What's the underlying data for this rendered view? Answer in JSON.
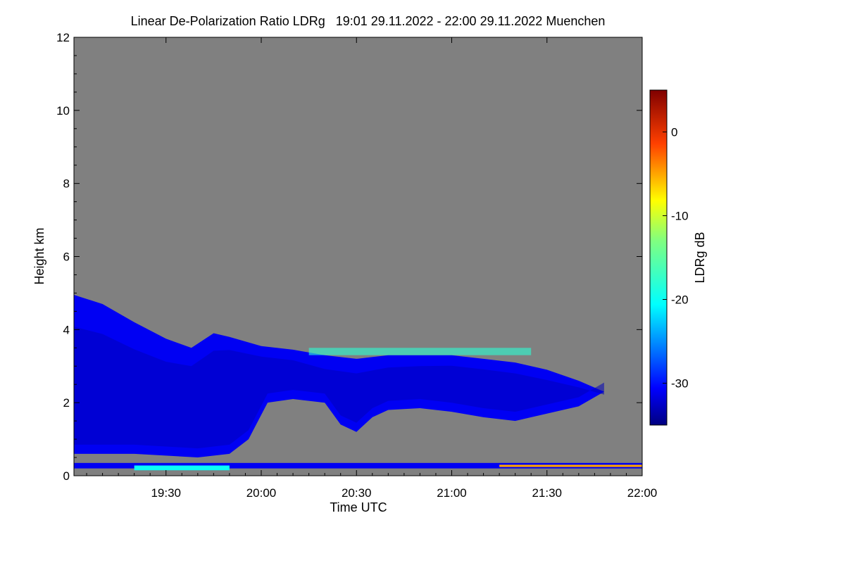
{
  "chart_data": {
    "type": "heatmap",
    "title": "Linear De-Polarization Ratio LDRg   19:01 29.11.2022 - 22:00 29.11.2022 Muenchen",
    "xlabel": "Time UTC",
    "ylabel": "Height km",
    "colorbar_label": "LDRg dB",
    "x_range_minutes_after_19": [
      1,
      180
    ],
    "x_ticks": [
      {
        "label": "19:30",
        "minute": 30
      },
      {
        "label": "20:00",
        "minute": 60
      },
      {
        "label": "20:30",
        "minute": 90
      },
      {
        "label": "21:00",
        "minute": 120
      },
      {
        "label": "21:30",
        "minute": 150
      },
      {
        "label": "22:00",
        "minute": 180
      }
    ],
    "ylim": [
      0,
      12
    ],
    "y_ticks": [
      0,
      2,
      4,
      6,
      8,
      10,
      12
    ],
    "colorbar_range": [
      -35,
      5
    ],
    "colorbar_ticks": [
      0,
      -10,
      -20,
      -30
    ],
    "no_data_color": "#808080",
    "cloud_top_km": [
      {
        "minute": 1,
        "top": 4.95
      },
      {
        "minute": 10,
        "top": 4.7
      },
      {
        "minute": 20,
        "top": 4.2
      },
      {
        "minute": 30,
        "top": 3.75
      },
      {
        "minute": 38,
        "top": 3.5
      },
      {
        "minute": 45,
        "top": 3.9
      },
      {
        "minute": 50,
        "top": 3.8
      },
      {
        "minute": 60,
        "top": 3.55
      },
      {
        "minute": 70,
        "top": 3.45
      },
      {
        "minute": 80,
        "top": 3.3
      },
      {
        "minute": 90,
        "top": 3.2
      },
      {
        "minute": 100,
        "top": 3.3
      },
      {
        "minute": 110,
        "top": 3.3
      },
      {
        "minute": 120,
        "top": 3.3
      },
      {
        "minute": 130,
        "top": 3.2
      },
      {
        "minute": 140,
        "top": 3.1
      },
      {
        "minute": 150,
        "top": 2.9
      },
      {
        "minute": 160,
        "top": 2.6
      },
      {
        "minute": 168,
        "top": 2.3
      }
    ],
    "cloud_base_km": [
      {
        "minute": 168,
        "top": 2.3
      },
      {
        "minute": 160,
        "top": 1.9
      },
      {
        "minute": 150,
        "top": 1.7
      },
      {
        "minute": 140,
        "top": 1.5
      },
      {
        "minute": 130,
        "top": 1.6
      },
      {
        "minute": 120,
        "top": 1.75
      },
      {
        "minute": 110,
        "top": 1.85
      },
      {
        "minute": 100,
        "top": 1.8
      },
      {
        "minute": 95,
        "top": 1.6
      },
      {
        "minute": 90,
        "top": 1.2
      },
      {
        "minute": 85,
        "top": 1.4
      },
      {
        "minute": 80,
        "top": 2.0
      },
      {
        "minute": 70,
        "top": 2.1
      },
      {
        "minute": 62,
        "top": 2.0
      },
      {
        "minute": 59,
        "top": 1.5
      },
      {
        "minute": 56,
        "top": 1.0
      },
      {
        "minute": 50,
        "top": 0.6
      },
      {
        "minute": 40,
        "top": 0.5
      },
      {
        "minute": 20,
        "top": 0.6
      },
      {
        "minute": 1,
        "top": 0.6
      }
    ],
    "layers": [
      {
        "name": "main-cloud",
        "ldr_db": -31
      },
      {
        "name": "inner-core",
        "ldr_db": -33
      },
      {
        "name": "near-ground-noise-band",
        "ldr_db": -31,
        "from_minute": 1,
        "to_minute": 180,
        "bottom_km": 0.2,
        "top_km": 0.35
      },
      {
        "name": "near-ground-cyan-segment",
        "ldr_db": -20,
        "from_minute": 20,
        "to_minute": 50,
        "bottom_km": 0.15,
        "top_km": 0.28
      },
      {
        "name": "near-ground-orange-line",
        "ldr_db": -5,
        "from_minute": 135,
        "to_minute": 180,
        "bottom_km": 0.24,
        "top_km": 0.3
      },
      {
        "name": "cloud-top-speckle",
        "ldr_db": -18,
        "from_minute": 75,
        "to_minute": 145,
        "bottom_km": 3.3,
        "top_km": 3.5
      }
    ]
  }
}
